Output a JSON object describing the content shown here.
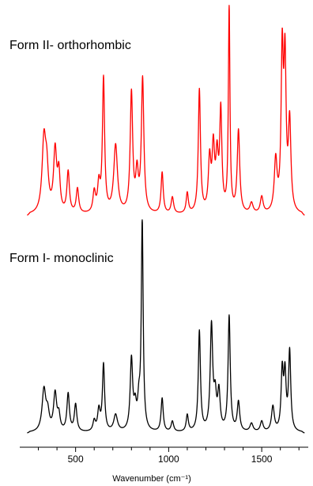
{
  "chart_data": {
    "type": "line",
    "xlabel": "Wavenumber (cm⁻¹)",
    "xlim": [
      200,
      1750
    ],
    "xticks": [
      500,
      1000,
      1500
    ],
    "grid": false,
    "series": [
      {
        "name": "Form II- orthorhombic",
        "color": "#ff0000",
        "peaks": [
          [
            330,
            0.35,
            12
          ],
          [
            345,
            0.18,
            10
          ],
          [
            390,
            0.3,
            10
          ],
          [
            410,
            0.18,
            8
          ],
          [
            460,
            0.2,
            8
          ],
          [
            510,
            0.12,
            8
          ],
          [
            600,
            0.1,
            8
          ],
          [
            625,
            0.13,
            8
          ],
          [
            650,
            0.65,
            7
          ],
          [
            715,
            0.33,
            12
          ],
          [
            800,
            0.58,
            8
          ],
          [
            830,
            0.18,
            8
          ],
          [
            860,
            0.65,
            8
          ],
          [
            965,
            0.2,
            7
          ],
          [
            1020,
            0.08,
            8
          ],
          [
            1100,
            0.1,
            7
          ],
          [
            1165,
            0.6,
            7
          ],
          [
            1220,
            0.25,
            8
          ],
          [
            1240,
            0.3,
            8
          ],
          [
            1260,
            0.25,
            8
          ],
          [
            1280,
            0.48,
            7
          ],
          [
            1325,
            1.0,
            5
          ],
          [
            1375,
            0.4,
            8
          ],
          [
            1445,
            0.05,
            10
          ],
          [
            1500,
            0.08,
            9
          ],
          [
            1575,
            0.25,
            9
          ],
          [
            1610,
            0.75,
            7
          ],
          [
            1625,
            0.7,
            7
          ],
          [
            1650,
            0.43,
            8
          ]
        ]
      },
      {
        "name": "Form I- monoclinic",
        "color": "#000000",
        "peaks": [
          [
            330,
            0.2,
            12
          ],
          [
            350,
            0.08,
            10
          ],
          [
            390,
            0.18,
            10
          ],
          [
            410,
            0.07,
            8
          ],
          [
            460,
            0.18,
            8
          ],
          [
            500,
            0.13,
            8
          ],
          [
            600,
            0.05,
            8
          ],
          [
            625,
            0.1,
            8
          ],
          [
            650,
            0.32,
            7
          ],
          [
            715,
            0.08,
            12
          ],
          [
            800,
            0.34,
            8
          ],
          [
            820,
            0.1,
            8
          ],
          [
            840,
            0.12,
            8
          ],
          [
            858,
            1.0,
            6
          ],
          [
            965,
            0.16,
            7
          ],
          [
            1020,
            0.05,
            8
          ],
          [
            1100,
            0.08,
            7
          ],
          [
            1165,
            0.48,
            7
          ],
          [
            1230,
            0.5,
            8
          ],
          [
            1250,
            0.15,
            8
          ],
          [
            1270,
            0.18,
            8
          ],
          [
            1325,
            0.55,
            7
          ],
          [
            1375,
            0.14,
            8
          ],
          [
            1445,
            0.04,
            10
          ],
          [
            1500,
            0.05,
            9
          ],
          [
            1560,
            0.12,
            9
          ],
          [
            1610,
            0.28,
            7
          ],
          [
            1625,
            0.26,
            7
          ],
          [
            1650,
            0.38,
            7
          ]
        ]
      }
    ]
  }
}
